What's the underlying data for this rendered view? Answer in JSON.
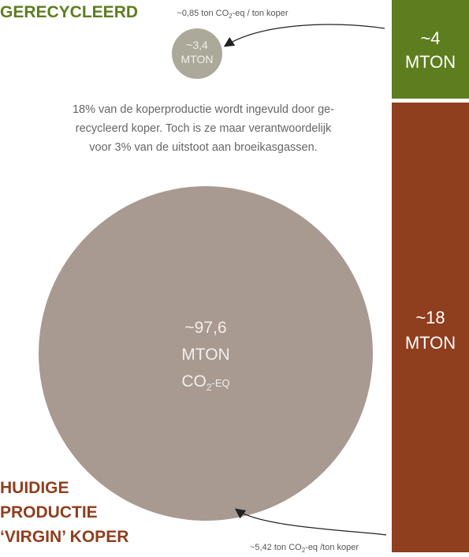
{
  "recycled": {
    "title": "GERECYCLEERD",
    "factor": [
      "~0,85 ton CO",
      "2",
      "-eq / ton koper"
    ],
    "circle": [
      "~3,4",
      "MTON"
    ],
    "bar": [
      "~4",
      "MTON"
    ]
  },
  "note": [
    "18% van de koperproductie wordt ingevuld door ge-",
    "recycleerd koper. Toch is ze maar verantwoordelijk",
    "voor 3% van de uitstoot aan broeikasgassen."
  ],
  "virgin": {
    "title": [
      "HUIDIGE",
      "PRODUCTIE",
      "‘VIRGIN’ KOPER"
    ],
    "factor": [
      "~5,42 ton CO",
      "2",
      "-eq /ton koper"
    ],
    "circle": [
      "~97,6",
      "MTON"
    ],
    "circle_unit": [
      "CO",
      "2",
      "-EQ"
    ],
    "bar": [
      "~18",
      "MTON"
    ]
  }
}
